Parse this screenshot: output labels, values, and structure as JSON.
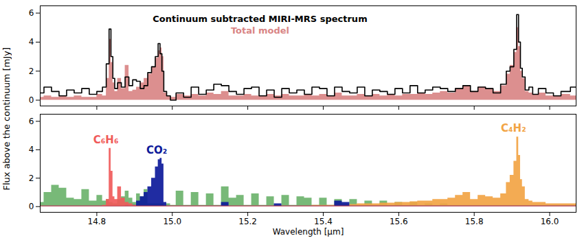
{
  "chart_data": [
    {
      "type": "area",
      "ylabel": "Flux above the continuum [mJy]",
      "legend": "upper center",
      "grid": false,
      "tick_labels": "y",
      "xlim": [
        14.65,
        16.07
      ],
      "xticks": [
        14.8,
        {
          "value": 15.0,
          "label": "15.0"
        },
        15.2,
        15.4,
        15.6,
        15.8,
        {
          "value": 16.0,
          "label": "16.0"
        }
      ],
      "ylim": [
        -0.4,
        6.5
      ],
      "yticks": [
        0,
        2,
        4,
        6
      ],
      "x": [
        14.65,
        14.67,
        14.69,
        14.71,
        14.73,
        14.75,
        14.77,
        14.79,
        14.81,
        14.82,
        14.83,
        14.835,
        14.84,
        14.845,
        14.85,
        14.86,
        14.87,
        14.88,
        14.89,
        14.9,
        14.91,
        14.92,
        14.93,
        14.94,
        14.95,
        14.96,
        14.965,
        14.97,
        14.975,
        14.98,
        14.99,
        15.0,
        15.02,
        15.04,
        15.06,
        15.08,
        15.1,
        15.12,
        15.14,
        15.16,
        15.18,
        15.2,
        15.22,
        15.24,
        15.26,
        15.28,
        15.3,
        15.32,
        15.34,
        15.36,
        15.38,
        15.4,
        15.42,
        15.44,
        15.46,
        15.48,
        15.5,
        15.52,
        15.54,
        15.56,
        15.58,
        15.6,
        15.62,
        15.64,
        15.66,
        15.68,
        15.7,
        15.72,
        15.74,
        15.76,
        15.78,
        15.8,
        15.82,
        15.84,
        15.86,
        15.88,
        15.89,
        15.9,
        15.91,
        15.915,
        15.92,
        15.925,
        15.93,
        15.94,
        15.95,
        15.96,
        15.98,
        16.0,
        16.02,
        16.04,
        16.07
      ],
      "series": [
        {
          "name": "Continuum subtracted MIRI-MRS spectrum",
          "type": "line",
          "color": "#000000",
          "values": [
            0.5,
            0.9,
            0.6,
            0.3,
            0.7,
            0.5,
            0.8,
            0.4,
            0.6,
            0.9,
            2.5,
            4.9,
            3.0,
            1.5,
            0.8,
            1.2,
            0.9,
            1.6,
            1.0,
            1.4,
            1.3,
            0.8,
            1.0,
            1.9,
            2.3,
            3.0,
            3.9,
            3.2,
            2.0,
            0.6,
            0.3,
            0.0,
            0.5,
            0.2,
            0.9,
            0.4,
            0.7,
            1.1,
            1.0,
            0.6,
            0.4,
            0.8,
            0.9,
            0.3,
            0.7,
            0.2,
            0.8,
            0.5,
            0.7,
            0.4,
            0.9,
            0.8,
            0.3,
            0.9,
            0.6,
            0.5,
            0.9,
            0.3,
            0.7,
            0.6,
            0.4,
            0.8,
            0.5,
            1.0,
            0.5,
            0.7,
            0.9,
            0.8,
            0.6,
            0.8,
            1.0,
            0.6,
            0.9,
            0.8,
            0.5,
            1.1,
            2.0,
            2.3,
            3.5,
            5.9,
            4.0,
            2.2,
            1.6,
            0.7,
            0.9,
            0.4,
            0.8,
            0.5,
            0.3,
            0.6,
            0.9
          ]
        },
        {
          "name": "Total model",
          "type": "area",
          "color": "#d98585",
          "values": [
            0.2,
            0.3,
            0.2,
            0.3,
            0.2,
            0.3,
            0.2,
            0.2,
            0.4,
            0.3,
            1.5,
            4.2,
            2.6,
            1.2,
            0.6,
            1.5,
            0.8,
            2.4,
            0.6,
            0.7,
            0.9,
            1.2,
            1.5,
            1.8,
            2.3,
            2.9,
            3.4,
            3.6,
            3.0,
            0.5,
            0.3,
            0.2,
            0.4,
            0.3,
            0.4,
            0.3,
            0.5,
            0.4,
            0.6,
            0.3,
            0.3,
            0.4,
            0.3,
            0.3,
            0.4,
            0.3,
            0.4,
            0.3,
            0.3,
            0.4,
            0.3,
            0.4,
            0.3,
            0.5,
            0.3,
            0.3,
            0.4,
            0.3,
            0.4,
            0.3,
            0.4,
            0.3,
            0.4,
            0.4,
            0.5,
            0.4,
            0.5,
            0.6,
            0.5,
            0.8,
            1.0,
            0.6,
            0.9,
            0.8,
            0.6,
            1.0,
            1.8,
            2.4,
            3.3,
            5.0,
            3.7,
            2.0,
            1.5,
            0.6,
            0.5,
            0.4,
            0.5,
            0.3,
            0.3,
            0.4,
            0.3
          ]
        }
      ]
    },
    {
      "type": "area",
      "xlabel": "Wavelength [µm]",
      "grid": false,
      "xlim": [
        14.65,
        16.07
      ],
      "xticks": [
        14.8,
        {
          "value": 15.0,
          "label": "15.0"
        },
        15.2,
        15.4,
        15.6,
        15.8,
        {
          "value": 16.0,
          "label": "16.0"
        }
      ],
      "ylim": [
        -0.4,
        6.5
      ],
      "yticks": [
        0,
        2,
        4,
        6
      ],
      "x": [
        14.65,
        14.67,
        14.69,
        14.71,
        14.73,
        14.75,
        14.77,
        14.79,
        14.81,
        14.82,
        14.83,
        14.835,
        14.84,
        14.845,
        14.85,
        14.86,
        14.87,
        14.88,
        14.89,
        14.9,
        14.91,
        14.92,
        14.93,
        14.94,
        14.95,
        14.96,
        14.965,
        14.97,
        14.975,
        14.98,
        14.99,
        15.0,
        15.02,
        15.04,
        15.06,
        15.08,
        15.1,
        15.12,
        15.14,
        15.16,
        15.18,
        15.2,
        15.22,
        15.24,
        15.26,
        15.28,
        15.3,
        15.32,
        15.34,
        15.36,
        15.38,
        15.4,
        15.42,
        15.44,
        15.46,
        15.48,
        15.5,
        15.52,
        15.54,
        15.56,
        15.58,
        15.6,
        15.62,
        15.64,
        15.66,
        15.68,
        15.7,
        15.72,
        15.74,
        15.76,
        15.78,
        15.8,
        15.82,
        15.84,
        15.86,
        15.88,
        15.89,
        15.9,
        15.91,
        15.915,
        15.92,
        15.925,
        15.93,
        15.94,
        15.95,
        15.96,
        15.98,
        16.0,
        16.02,
        16.04,
        16.07
      ],
      "series": [
        {
          "name": null,
          "type": "area",
          "color": "#6cb36c",
          "values": [
            0.3,
            1.0,
            1.5,
            1.3,
            0.6,
            0.5,
            1.2,
            0.4,
            0.8,
            0.4,
            0.5,
            0.3,
            0.3,
            0.2,
            0.2,
            0.5,
            0.7,
            1.1,
            0.6,
            0.3,
            0.9,
            0.7,
            1.2,
            0.2,
            0.2,
            0.2,
            0.2,
            0.2,
            0.2,
            0.1,
            0.2,
            0.1,
            1.1,
            0.1,
            1.0,
            0.1,
            0.9,
            0.1,
            1.4,
            0.6,
            0.8,
            0.1,
            0.9,
            0.1,
            0.7,
            0.1,
            0.8,
            0.1,
            0.7,
            0.6,
            0.1,
            0.6,
            0.1,
            0.5,
            0.1,
            0.5,
            0.1,
            0.4,
            0.1,
            0.4,
            0.1,
            0.3,
            0.1,
            0.3,
            0.1,
            0.2,
            0.1,
            0.2,
            0.1,
            0.1,
            0.1,
            0.1,
            0.1,
            0.1,
            0.1,
            0.1,
            0.1,
            0.1,
            0.1,
            0.1,
            0.1,
            0.1,
            0.1,
            0.1,
            0.1,
            0.1,
            0.1,
            0.1,
            0.1,
            0.1,
            0.1
          ]
        },
        {
          "name": "C₄H₂",
          "type": "area",
          "color": "#f2a444",
          "values": [
            0.05,
            0.05,
            0.05,
            0.05,
            0.05,
            0.05,
            0.05,
            0.05,
            0.05,
            0.05,
            0.05,
            0.05,
            0.05,
            0.05,
            0.05,
            0.05,
            0.05,
            0.05,
            0.05,
            0.05,
            0.05,
            0.05,
            0.05,
            0.05,
            0.05,
            0.05,
            0.05,
            0.05,
            0.05,
            0.05,
            0.05,
            0.05,
            0.05,
            0.05,
            0.05,
            0.05,
            0.05,
            0.05,
            0.05,
            0.05,
            0.05,
            0.05,
            0.05,
            0.05,
            0.05,
            0.05,
            0.05,
            0.05,
            0.05,
            0.05,
            0.1,
            0.1,
            0.1,
            0.15,
            0.15,
            0.15,
            0.2,
            0.2,
            0.2,
            0.25,
            0.25,
            0.3,
            0.3,
            0.35,
            0.4,
            0.4,
            0.5,
            0.5,
            0.6,
            0.8,
            1.0,
            0.5,
            0.8,
            0.7,
            0.6,
            0.9,
            1.7,
            2.2,
            3.2,
            4.9,
            3.6,
            1.9,
            1.4,
            0.5,
            0.4,
            0.3,
            0.3,
            0.2,
            0.2,
            0.2,
            0.2
          ]
        },
        {
          "name": "CO₂",
          "type": "area",
          "color": "#0d1a9a",
          "values": [
            0.05,
            0.05,
            0.05,
            0.05,
            0.05,
            0.05,
            0.05,
            0.05,
            0.05,
            0.05,
            0.05,
            0.05,
            0.05,
            0.05,
            0.05,
            0.05,
            0.05,
            0.1,
            0.05,
            0.1,
            0.4,
            0.7,
            1.0,
            1.4,
            2.0,
            2.8,
            3.3,
            3.4,
            3.0,
            0.3,
            0.05,
            0.05,
            0.05,
            0.05,
            0.05,
            0.05,
            0.05,
            0.05,
            0.3,
            0.05,
            0.05,
            0.05,
            0.05,
            0.05,
            0.05,
            0.2,
            0.05,
            0.05,
            0.05,
            0.05,
            0.05,
            0.05,
            0.05,
            0.4,
            0.3,
            0.05,
            0.05,
            0.05,
            0.05,
            0.05,
            0.05,
            0.05,
            0.05,
            0.05,
            0.05,
            0.05,
            0.05,
            0.05,
            0.05,
            0.05,
            0.05,
            0.05,
            0.05,
            0.05,
            0.05,
            0.05,
            0.05,
            0.05,
            0.05,
            0.05,
            0.05,
            0.05,
            0.05,
            0.05,
            0.05,
            0.05,
            0.05,
            0.05,
            0.05,
            0.05,
            0.05
          ]
        },
        {
          "name": "C₆H₆",
          "type": "area",
          "color": "#f05a5a",
          "values": [
            0.05,
            0.05,
            0.05,
            0.05,
            0.05,
            0.05,
            0.05,
            0.05,
            0.05,
            0.1,
            0.5,
            4.1,
            2.5,
            0.7,
            0.5,
            1.4,
            0.6,
            0.3,
            0.2,
            0.1,
            0.05,
            0.05,
            0.05,
            0.05,
            0.05,
            0.05,
            0.05,
            0.05,
            0.05,
            0.05,
            0.05,
            0.05,
            0.05,
            0.05,
            0.05,
            0.05,
            0.05,
            0.05,
            0.05,
            0.05,
            0.05,
            0.05,
            0.05,
            0.05,
            0.05,
            0.05,
            0.05,
            0.05,
            0.05,
            0.05,
            0.05,
            0.05,
            0.05,
            0.05,
            0.05,
            0.05,
            0.05,
            0.05,
            0.05,
            0.05,
            0.05,
            0.05,
            0.05,
            0.05,
            0.05,
            0.05,
            0.05,
            0.05,
            0.05,
            0.05,
            0.05,
            0.05,
            0.05,
            0.05,
            0.05,
            0.05,
            0.05,
            0.05,
            0.05,
            0.05,
            0.05,
            0.05,
            0.05,
            0.05,
            0.05,
            0.05,
            0.05,
            0.05,
            0.05,
            0.05,
            0.05
          ]
        }
      ]
    }
  ]
}
